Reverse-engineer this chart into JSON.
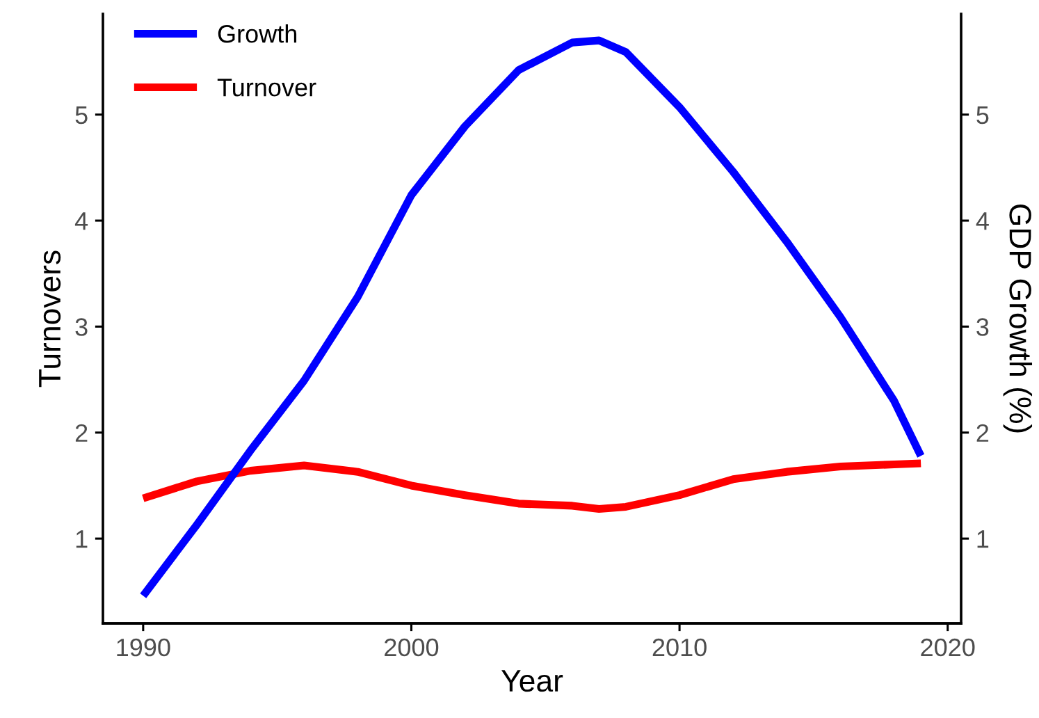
{
  "chart_data": {
    "type": "line",
    "xlabel": "Year",
    "ylabel": "Turnovers",
    "y2label": "GDP Growth (%)",
    "x": [
      1990,
      1992,
      1994,
      1996,
      1998,
      2000,
      2002,
      2004,
      2006,
      2007,
      2008,
      2010,
      2012,
      2014,
      2016,
      2018,
      2019
    ],
    "series": [
      {
        "name": "Growth",
        "color": "#0000ff",
        "axis": "y2",
        "values": [
          0.46,
          1.13,
          1.83,
          2.49,
          3.28,
          4.24,
          4.89,
          5.42,
          5.68,
          5.7,
          5.59,
          5.07,
          4.46,
          3.8,
          3.09,
          2.3,
          1.78
        ]
      },
      {
        "name": "Turnover",
        "color": "#ff0000",
        "values": [
          1.38,
          1.54,
          1.64,
          1.69,
          1.63,
          1.5,
          1.41,
          1.33,
          1.31,
          1.28,
          1.3,
          1.41,
          1.56,
          1.63,
          1.68,
          1.7,
          1.71
        ]
      }
    ],
    "xlim": [
      1988.5,
      2020.5
    ],
    "xticks": [
      1990,
      2000,
      2010,
      2020
    ],
    "ylim": [
      0.2,
      5.95
    ],
    "yticks": [
      1,
      2,
      3,
      4,
      5
    ],
    "y2lim": [
      0.2,
      5.95
    ],
    "y2ticks": [
      1,
      2,
      3,
      4,
      5
    ],
    "grid": false,
    "legend": "top left",
    "marker": "none",
    "line_style": "solid"
  }
}
